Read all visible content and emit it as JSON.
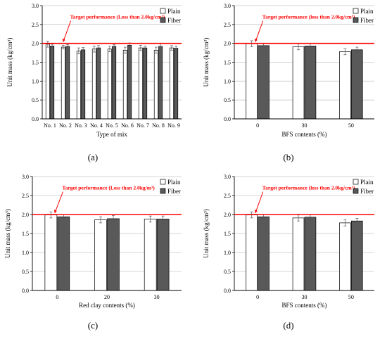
{
  "chart_data": [
    {
      "type": "bar",
      "panel_label": "(a)",
      "categories": [
        "No. 1",
        "No. 2",
        "No. 3",
        "No. 4",
        "No. 5",
        "No. 6",
        "No. 7",
        "No. 8",
        "No. 9"
      ],
      "series": [
        {
          "name": "Plain",
          "values": [
            1.98,
            1.9,
            1.8,
            1.85,
            1.85,
            1.82,
            1.88,
            1.82,
            1.88
          ],
          "errors": [
            0.08,
            0.05,
            0.08,
            0.08,
            0.07,
            0.08,
            0.07,
            0.08,
            0.06
          ]
        },
        {
          "name": "Fiber",
          "values": [
            1.93,
            1.92,
            1.83,
            1.88,
            1.92,
            1.95,
            1.88,
            1.92,
            1.87
          ],
          "errors": [
            0.05,
            0.05,
            0.06,
            0.06,
            0.05,
            0.06,
            0.05,
            0.07,
            0.06
          ]
        }
      ],
      "xlabel": "Type of mix",
      "ylabel": "Unit mass (kg/cm³)",
      "ylim": [
        0,
        3.0
      ],
      "yticks": [
        "0.0",
        "0.5",
        "1.0",
        "1.5",
        "2.0",
        "2.5",
        "3.0"
      ],
      "grid": true,
      "target_line": {
        "value": 2.0,
        "label": "Target performance (Less than 2.0kg/cm³)",
        "color": "#ff0000"
      },
      "legend_position": "top-right"
    },
    {
      "type": "bar",
      "panel_label": "(b)",
      "categories": [
        "0",
        "30",
        "50"
      ],
      "series": [
        {
          "name": "Plain",
          "values": [
            1.99,
            1.91,
            1.78
          ],
          "errors": [
            0.08,
            0.08,
            0.08
          ]
        },
        {
          "name": "Fiber",
          "values": [
            1.94,
            1.93,
            1.83
          ],
          "errors": [
            0.06,
            0.07,
            0.07
          ]
        }
      ],
      "xlabel": "BFS contents (%)",
      "ylabel": "Unit mass (kg/cm³)",
      "ylim": [
        0,
        3.0
      ],
      "yticks": [
        "0.0",
        "0.5",
        "1.0",
        "1.5",
        "2.0",
        "2.5",
        "3.0"
      ],
      "grid": true,
      "target_line": {
        "value": 2.0,
        "label": "Target performance (less than 2.0kg/cm³)",
        "color": "#ff0000"
      },
      "legend_position": "top-right"
    },
    {
      "type": "bar",
      "panel_label": "(c)",
      "categories": [
        "0",
        "20",
        "30"
      ],
      "series": [
        {
          "name": "Plain",
          "values": [
            1.99,
            1.86,
            1.88
          ],
          "errors": [
            0.08,
            0.08,
            0.08
          ]
        },
        {
          "name": "Fiber",
          "values": [
            1.94,
            1.89,
            1.88
          ],
          "errors": [
            0.06,
            0.08,
            0.08
          ]
        }
      ],
      "xlabel": "Red clay contents (%)",
      "ylabel": "Unit mass (kg/cm³)",
      "ylim": [
        0,
        3.0
      ],
      "yticks": [
        "0.0",
        "0.5",
        "1.0",
        "1.5",
        "2.0",
        "2.5",
        "3.0"
      ],
      "grid": true,
      "target_line": {
        "value": 2.0,
        "label": "Target performance (Less than 2.0kg/m³)",
        "color": "#ff0000"
      },
      "legend_position": "top-right"
    },
    {
      "type": "bar",
      "panel_label": "(d)",
      "categories": [
        "0",
        "30",
        "50"
      ],
      "series": [
        {
          "name": "Plain",
          "values": [
            1.99,
            1.91,
            1.78
          ],
          "errors": [
            0.08,
            0.08,
            0.08
          ]
        },
        {
          "name": "Fiber",
          "values": [
            1.94,
            1.93,
            1.83
          ],
          "errors": [
            0.06,
            0.07,
            0.07
          ]
        }
      ],
      "xlabel": "BFS contents (%)",
      "ylabel": "Unit mass (kg/cm³)",
      "ylim": [
        0,
        3.0
      ],
      "yticks": [
        "0.0",
        "0.5",
        "1.0",
        "1.5",
        "2.0",
        "2.5",
        "3.0"
      ],
      "grid": true,
      "target_line": {
        "value": 2.0,
        "label": "Target performance (less than 2.0kg/cm³)",
        "color": "#ff0000"
      },
      "legend_position": "top-right"
    }
  ],
  "colors": {
    "plain": "#ffffff",
    "fiber": "#595959",
    "grid": "#c8c8c8",
    "target": "#ff0000"
  }
}
